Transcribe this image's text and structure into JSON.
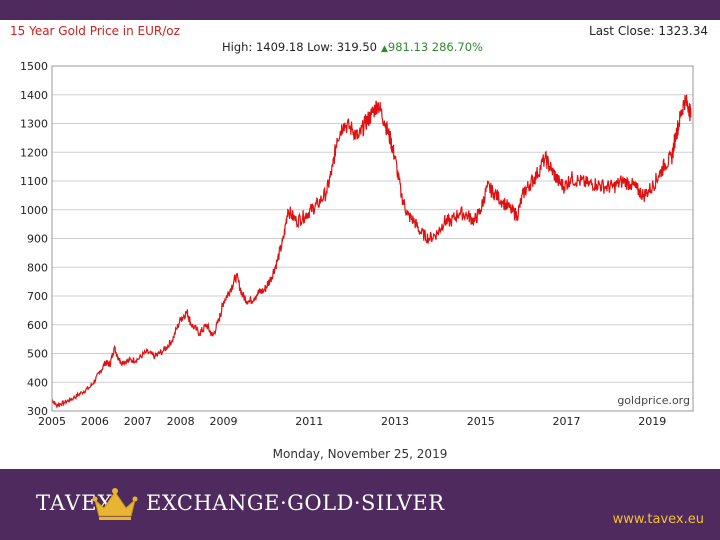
{
  "header": {
    "title": "15 Year Gold Price in EUR/oz",
    "last_close": "Last Close: 1323.34",
    "stats_prefix": "High: 1409.18 Low: 319.50",
    "stats_change": "981.13 286.70%",
    "up_arrow_icon": "up-triangle-icon"
  },
  "chart_data": {
    "type": "line",
    "title": "15 Year Gold Price in EUR/oz",
    "xlabel": "",
    "ylabel": "",
    "x_ticks": [
      "2005",
      "2006",
      "2007",
      "2008",
      "2009",
      "2011",
      "2013",
      "2015",
      "2017",
      "2019"
    ],
    "y_ticks": [
      "1500",
      "1400",
      "1300",
      "1200",
      "1100",
      "1000",
      "900",
      "800",
      "700",
      "600",
      "500",
      "400",
      "300"
    ],
    "ylim": [
      300,
      1500
    ],
    "xlim": [
      2005.0,
      2019.95
    ],
    "grid": true,
    "series_color": "#dd1111",
    "watermark": "goldprice.org",
    "series": [
      {
        "x": [
          2005.0,
          2005.1,
          2005.3,
          2005.5,
          2005.7,
          2005.9,
          2006.1,
          2006.25,
          2006.35,
          2006.45,
          2006.6,
          2006.8,
          2007.0,
          2007.2,
          2007.4,
          2007.6,
          2007.8,
          2008.0,
          2008.15,
          2008.25,
          2008.45,
          2008.6,
          2008.75,
          2008.9,
          2009.0,
          2009.15,
          2009.3,
          2009.45,
          2009.6,
          2009.8,
          2009.95,
          2010.1,
          2010.25,
          2010.4,
          2010.5,
          2010.7,
          2010.9,
          2011.05,
          2011.2,
          2011.4,
          2011.55,
          2011.65,
          2011.8,
          2012.0,
          2012.15,
          2012.3,
          2012.45,
          2012.6,
          2012.75,
          2012.9,
          2013.0,
          2013.15,
          2013.3,
          2013.45,
          2013.6,
          2013.8,
          2014.0,
          2014.15,
          2014.3,
          2014.5,
          2014.7,
          2014.85,
          2015.0,
          2015.15,
          2015.3,
          2015.5,
          2015.7,
          2015.85,
          2016.0,
          2016.15,
          2016.3,
          2016.5,
          2016.65,
          2016.8,
          2016.95,
          2017.1,
          2017.3,
          2017.5,
          2017.7,
          2017.9,
          2018.1,
          2018.3,
          2018.5,
          2018.65,
          2018.8,
          2019.0,
          2019.15,
          2019.3,
          2019.45,
          2019.55,
          2019.65,
          2019.75,
          2019.85,
          2019.9
        ],
        "y": [
          340,
          320,
          330,
          345,
          365,
          385,
          430,
          470,
          460,
          520,
          470,
          475,
          480,
          505,
          490,
          510,
          545,
          620,
          645,
          600,
          570,
          600,
          560,
          620,
          680,
          720,
          770,
          700,
          680,
          710,
          720,
          760,
          820,
          900,
          1000,
          960,
          980,
          1000,
          1020,
          1060,
          1150,
          1250,
          1300,
          1280,
          1250,
          1300,
          1330,
          1370,
          1310,
          1240,
          1180,
          1050,
          980,
          960,
          920,
          900,
          920,
          960,
          960,
          990,
          980,
          960,
          1000,
          1080,
          1060,
          1030,
          1000,
          980,
          1060,
          1090,
          1120,
          1180,
          1140,
          1100,
          1080,
          1110,
          1100,
          1090,
          1090,
          1080,
          1080,
          1100,
          1090,
          1070,
          1050,
          1080,
          1120,
          1160,
          1180,
          1260,
          1320,
          1380,
          1360,
          1323
        ]
      }
    ]
  },
  "date_line": "Monday, November 25, 2019",
  "footer": {
    "brand": "TAVEX",
    "brand_exchange": "EXCHANGE·GOLD·SILVER",
    "website": "www.tavex.eu",
    "logo_icon": "crown-icon"
  }
}
